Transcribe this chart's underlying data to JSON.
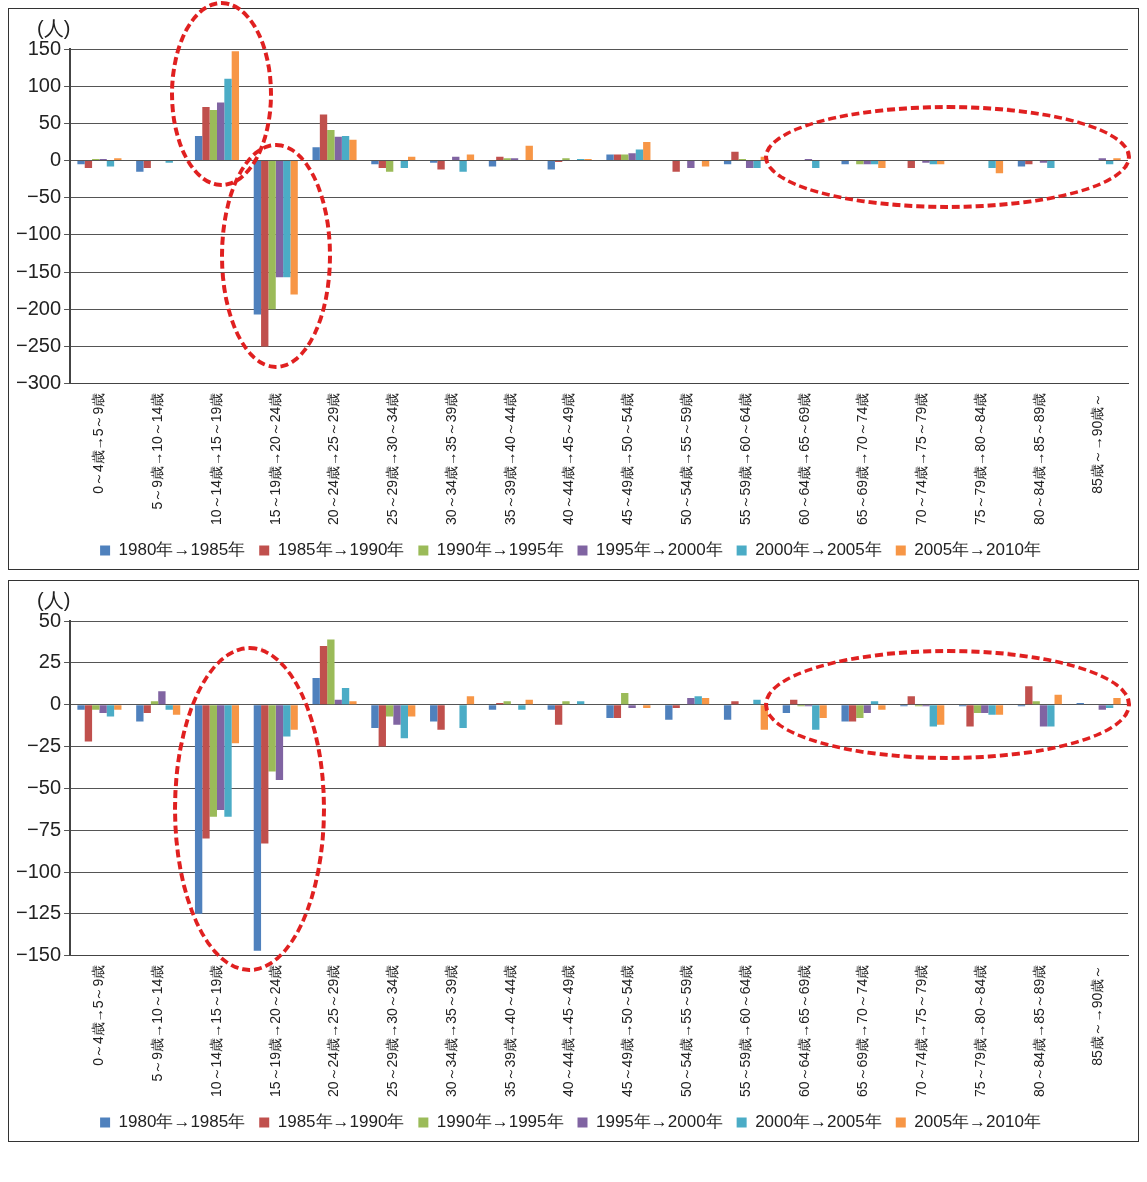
{
  "chart_data": [
    {
      "type": "bar",
      "ylabel": "(人)",
      "categories": [
        "0～4歳→5～9歳",
        "5～9歳→10～14歳",
        "10～14歳→15～19歳",
        "15～19歳→20～24歳",
        "20～24歳→25～29歳",
        "25～29歳→30～34歳",
        "30～34歳→35～39歳",
        "35～39歳→40～44歳",
        "40～44歳→45～49歳",
        "45～49歳→50～54歳",
        "50～54歳→55～59歳",
        "55～59歳→60～64歳",
        "60～64歳→65～69歳",
        "65～69歳→70～74歳",
        "70～74歳→75～79歳",
        "75～79歳→80～84歳",
        "80～84歳→85～89歳",
        "85歳～→90歳～"
      ],
      "series": [
        {
          "name": "1980年→1985年",
          "color": "#4f81bd",
          "values": [
            -5,
            -15,
            33,
            -207,
            18,
            -5,
            -3,
            -8,
            -12,
            8,
            0,
            -5,
            0,
            -5,
            0,
            0,
            -8,
            0
          ]
        },
        {
          "name": "1985年→1990年",
          "color": "#c0504d",
          "values": [
            -10,
            -10,
            72,
            -250,
            62,
            -10,
            -12,
            5,
            -2,
            8,
            -15,
            12,
            null,
            0,
            -10,
            0,
            -5,
            0
          ]
        },
        {
          "name": "1990年→1995年",
          "color": "#9bbb59",
          "values": [
            2,
            0,
            68,
            -200,
            41,
            -15,
            0,
            3,
            3,
            8,
            0,
            2,
            0,
            -5,
            0,
            0,
            0,
            0
          ]
        },
        {
          "name": "1995年→2000年",
          "color": "#8064a2",
          "values": [
            2,
            0,
            78,
            -157,
            32,
            0,
            5,
            3,
            0,
            10,
            -10,
            -10,
            2,
            -5,
            -3,
            0,
            -3,
            3
          ]
        },
        {
          "name": "2000年→2005年",
          "color": "#4bacc6",
          "values": [
            -8,
            -3,
            110,
            -157,
            33,
            -10,
            -15,
            0,
            2,
            15,
            0,
            -10,
            -10,
            -5,
            -5,
            -10,
            -10,
            -5
          ]
        },
        {
          "name": "2005年→2010年",
          "color": "#f79646",
          "values": [
            3,
            0,
            147,
            -180,
            28,
            5,
            8,
            20,
            2,
            25,
            -8,
            5,
            0,
            -10,
            -5,
            -17,
            0,
            3
          ]
        }
      ],
      "ylim": [
        -300,
        150
      ],
      "yticks": [
        -300,
        -250,
        -200,
        -150,
        -100,
        -50,
        0,
        50,
        100,
        150
      ],
      "grid": "y",
      "legend": "bottom"
    },
    {
      "type": "bar",
      "ylabel": "(人)",
      "categories": [
        "0～4歳→5～9歳",
        "5～9歳→10～14歳",
        "10～14歳→15～19歳",
        "15～19歳→20～24歳",
        "20～24歳→25～29歳",
        "25～29歳→30～34歳",
        "30～34歳→35～39歳",
        "35～39歳→40～44歳",
        "40～44歳→45～49歳",
        "45～49歳→50～54歳",
        "50～54歳→55～59歳",
        "55～59歳→60～64歳",
        "60～64歳→65～69歳",
        "65～69歳→70～74歳",
        "70～74歳→75～79歳",
        "75～79歳→80～84歳",
        "80～84歳→85～89歳",
        "85歳～→90歳～"
      ],
      "series": [
        {
          "name": "1980年→1985年",
          "color": "#4f81bd",
          "values": [
            -3,
            -10,
            -125,
            -147,
            16,
            -14,
            -10,
            -3,
            -3,
            -8,
            -9,
            -9,
            -5,
            -10,
            -1,
            -1,
            -1,
            1
          ]
        },
        {
          "name": "1985年→1990年",
          "color": "#c0504d",
          "values": [
            -22,
            -5,
            -80,
            -83,
            35,
            -25,
            -15,
            1,
            -12,
            -8,
            -2,
            2,
            3,
            -10,
            5,
            -13,
            11,
            0
          ]
        },
        {
          "name": "1990年→1995年",
          "color": "#9bbb59",
          "values": [
            -3,
            2,
            -67,
            -40,
            39,
            -7,
            0,
            2,
            2,
            7,
            0,
            0,
            -1,
            -8,
            -1,
            -5,
            2,
            0
          ]
        },
        {
          "name": "1995年→2000年",
          "color": "#8064a2",
          "values": [
            -5,
            8,
            -63,
            -45,
            3,
            -12,
            0,
            0,
            0,
            -2,
            4,
            0,
            -1,
            -5,
            -1,
            -5,
            -13,
            -3
          ]
        },
        {
          "name": "2000年→2005年",
          "color": "#4bacc6",
          "values": [
            -7,
            -3,
            -67,
            -19,
            10,
            -20,
            -14,
            -3,
            2,
            0,
            5,
            3,
            -15,
            2,
            -13,
            -6,
            -13,
            -2
          ]
        },
        {
          "name": "2005年→2010年",
          "color": "#f79646",
          "values": [
            -3,
            -6,
            -23,
            -15,
            2,
            -7,
            5,
            3,
            0,
            -2,
            4,
            -15,
            -8,
            -3,
            -12,
            -6,
            6,
            4
          ]
        }
      ],
      "ylim": [
        -150,
        50
      ],
      "yticks": [
        -150,
        -125,
        -100,
        -75,
        -50,
        -25,
        0,
        25,
        50
      ],
      "grid": "y",
      "legend": "bottom"
    }
  ]
}
